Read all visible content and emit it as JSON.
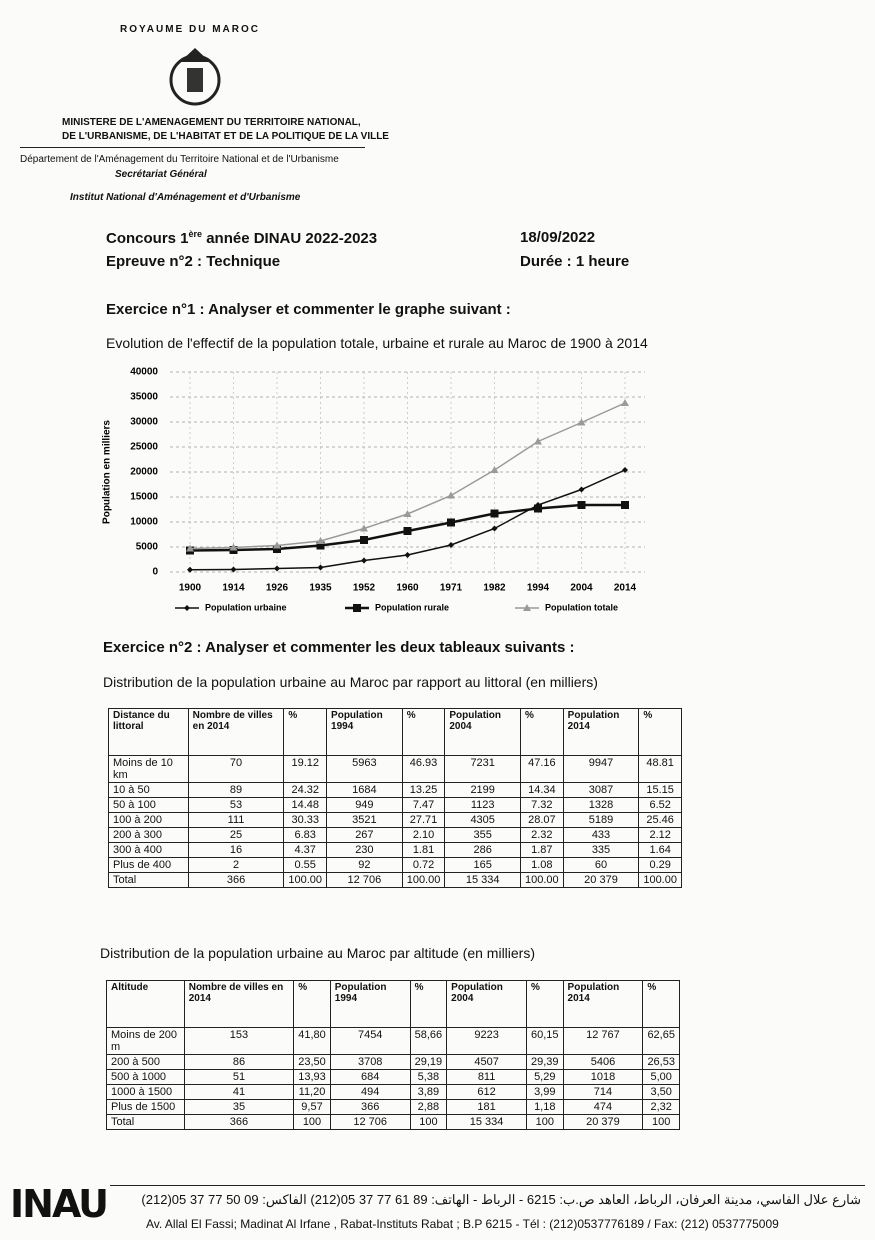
{
  "header": {
    "kingdom": "ROYAUME DU MAROC",
    "ministry_1": "MINISTERE DE L'AMENAGEMENT DU TERRITOIRE NATIONAL,",
    "ministry_2": "DE L'URBANISME, DE L'HABITAT ET DE LA POLITIQUE DE LA VILLE",
    "department": "Département de l'Aménagement du Territoire National et de l'Urbanisme",
    "secretariat": "Secrétariat Général",
    "institute": "Institut National d'Aménagement et d'Urbanisme"
  },
  "exam": {
    "contest_a": "Concours 1",
    "contest_sup": "ère",
    "contest_b": " année DINAU 2022-2023",
    "date": "18/09/2022",
    "test": "Epreuve n°2 : Technique",
    "duration": "Durée : 1 heure"
  },
  "exercise1": {
    "title": "Exercice n°1 : Analyser et commenter le graphe suivant :"
  },
  "chart_data": {
    "type": "line",
    "title": "Evolution de l'effectif de la population totale, urbaine et rurale au Maroc de 1900 à 2014",
    "y_label": "Population en milliers",
    "categories": [
      "1900",
      "1914",
      "1926",
      "1935",
      "1952",
      "1960",
      "1971",
      "1982",
      "1994",
      "2004",
      "2014"
    ],
    "series": [
      {
        "name": "Population urbaine",
        "color": "#111111",
        "marker": "diamond",
        "width": 1.5,
        "values": [
          450,
          500,
          700,
          900,
          2300,
          3400,
          5400,
          8700,
          13400,
          16500,
          20400
        ]
      },
      {
        "name": "Population rurale",
        "color": "#111111",
        "marker": "square",
        "width": 2.5,
        "values": [
          4300,
          4400,
          4600,
          5300,
          6400,
          8200,
          9900,
          11700,
          12700,
          13400,
          13400
        ]
      },
      {
        "name": "Population totale",
        "color": "#9a9a9a",
        "marker": "triangle",
        "width": 1.5,
        "values": [
          4700,
          4900,
          5300,
          6200,
          8700,
          11600,
          15300,
          20400,
          26100,
          29900,
          33800
        ]
      }
    ],
    "ylim": [
      0,
      40000
    ],
    "yticks": [
      0,
      5000,
      10000,
      15000,
      20000,
      25000,
      30000,
      35000,
      40000
    ],
    "grid": true,
    "legend": "bottom"
  },
  "exercise2": {
    "title": "Exercice n°2 : Analyser et commenter les deux tableaux suivants :"
  },
  "table1": {
    "title": "Distribution de la population urbaine au Maroc par rapport au littoral (en milliers)",
    "header": [
      "Distance du littoral",
      "Nombre de villes en 2014",
      "%",
      "Population 1994",
      "%",
      "Population 2004",
      "%",
      "Population 2014",
      "%"
    ],
    "rows": [
      [
        "Moins de 10 km",
        "70",
        "19.12",
        "5963",
        "46.93",
        "7231",
        "47.16",
        "9947",
        "48.81"
      ],
      [
        "10 à 50",
        "89",
        "24.32",
        "1684",
        "13.25",
        "2199",
        "14.34",
        "3087",
        "15.15"
      ],
      [
        "50 à 100",
        "53",
        "14.48",
        "949",
        "7.47",
        "1123",
        "7.32",
        "1328",
        "6.52"
      ],
      [
        "100 à 200",
        "111",
        "30.33",
        "3521",
        "27.71",
        "4305",
        "28.07",
        "5189",
        "25.46"
      ],
      [
        "200 à 300",
        "25",
        "6.83",
        "267",
        "2.10",
        "355",
        "2.32",
        "433",
        "2.12"
      ],
      [
        "300 à 400",
        "16",
        "4.37",
        "230",
        "1.81",
        "286",
        "1.87",
        "335",
        "1.64"
      ],
      [
        "Plus de 400",
        "2",
        "0.55",
        "92",
        "0.72",
        "165",
        "1.08",
        "60",
        "0.29"
      ],
      [
        "Total",
        "366",
        "100.00",
        "12 706",
        "100.00",
        "15 334",
        "100.00",
        "20 379",
        "100.00"
      ]
    ]
  },
  "table2": {
    "title": "Distribution de la population urbaine au Maroc par altitude (en milliers)",
    "header": [
      "Altitude",
      "Nombre de villes en 2014",
      "%",
      "Population 1994",
      "%",
      "Population 2004",
      "%",
      "Population 2014",
      "%"
    ],
    "rows": [
      [
        "Moins de 200 m",
        "153",
        "41,80",
        "7454",
        "58,66",
        "9223",
        "60,15",
        "12 767",
        "62,65"
      ],
      [
        "200 à 500",
        "86",
        "23,50",
        "3708",
        "29,19",
        "4507",
        "29,39",
        "5406",
        "26,53"
      ],
      [
        "500 à 1000",
        "51",
        "13,93",
        "684",
        "5,38",
        "811",
        "5,29",
        "1018",
        "5,00"
      ],
      [
        "1000 à 1500",
        "41",
        "11,20",
        "494",
        "3,89",
        "612",
        "3,99",
        "714",
        "3,50"
      ],
      [
        "Plus de 1500",
        "35",
        "9,57",
        "366",
        "2,88",
        "181",
        "1,18",
        "474",
        "2,32"
      ],
      [
        "Total",
        "366",
        "100",
        "12 706",
        "100",
        "15 334",
        "100",
        "20 379",
        "100"
      ]
    ]
  },
  "footer": {
    "logo": "INAU",
    "arabic": "شارع علال الفاسي، مدينة العرفان، الرباط، العاهد ص.ب: 6215 - الرباط - الهاتف: 89 61 77 37 05(212) الفاكس: 09 50 77 37 05(212)",
    "french": "Av. Allal El Fassi; Madinat Al Irfane , Rabat-Instituts Rabat ; B.P 6215 - Tél : (212)0537776189 / Fax: (212) 0537775009"
  }
}
